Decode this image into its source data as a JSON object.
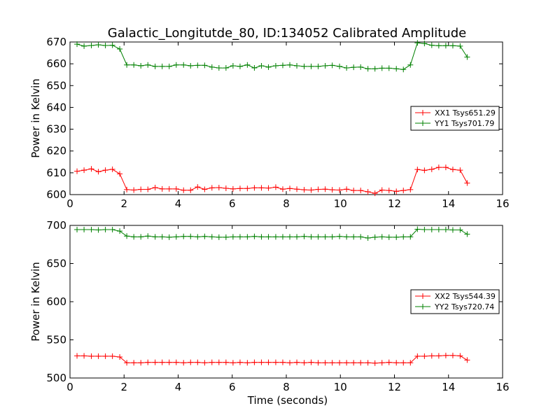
{
  "figure": {
    "title": "Galactic_Longitutde_80, ID:134052 Calibrated Amplitude"
  },
  "chart_data": [
    {
      "type": "line",
      "title": "Galactic_Longitutde_80, ID:134052 Calibrated Amplitude",
      "xlabel": "",
      "ylabel": "Power in Kelvin",
      "xlim": [
        0,
        16
      ],
      "ylim": [
        600,
        670
      ],
      "xticks": [
        0,
        2,
        4,
        6,
        8,
        10,
        12,
        14,
        16
      ],
      "yticks": [
        600,
        610,
        620,
        630,
        640,
        650,
        660,
        670
      ],
      "x_tick_labels": [
        "0",
        "2",
        "4",
        "6",
        "8",
        "10",
        "12",
        "14",
        "16"
      ],
      "y_tick_labels": [
        "600",
        "610",
        "620",
        "630",
        "640",
        "650",
        "660",
        "670"
      ],
      "grid": false,
      "legend_position": "right",
      "x": [
        0.26,
        0.52,
        0.79,
        1.05,
        1.31,
        1.57,
        1.84,
        2.1,
        2.36,
        2.62,
        2.88,
        3.15,
        3.41,
        3.67,
        3.93,
        4.2,
        4.46,
        4.72,
        4.98,
        5.25,
        5.51,
        5.77,
        6.03,
        6.29,
        6.56,
        6.82,
        7.08,
        7.34,
        7.61,
        7.87,
        8.13,
        8.39,
        8.66,
        8.92,
        9.18,
        9.44,
        9.7,
        9.97,
        10.23,
        10.49,
        10.75,
        11.02,
        11.28,
        11.54,
        11.8,
        12.07,
        12.33,
        12.59,
        12.85,
        13.11,
        13.38,
        13.64,
        13.9,
        14.16,
        14.43,
        14.69
      ],
      "series": [
        {
          "name": "XX1 Tsys651.29",
          "color": "#ff0000",
          "values": [
            610.7,
            611.2,
            611.8,
            610.5,
            611.2,
            611.6,
            609.5,
            602.3,
            602.1,
            602.4,
            602.4,
            603.2,
            602.6,
            602.6,
            602.6,
            602.0,
            602.0,
            603.5,
            602.4,
            603.1,
            603.2,
            602.9,
            602.6,
            602.8,
            602.8,
            603.1,
            603.1,
            603.0,
            603.4,
            602.5,
            602.8,
            602.5,
            602.2,
            602.1,
            602.4,
            602.5,
            602.2,
            602.1,
            602.5,
            601.9,
            601.9,
            601.3,
            600.6,
            602.1,
            601.9,
            601.5,
            601.9,
            602.3,
            611.5,
            611.1,
            611.6,
            612.5,
            612.5,
            611.5,
            611.2,
            605.3
          ]
        },
        {
          "name": "YY1 Tsys701.79",
          "color": "#008000",
          "values": [
            669.0,
            668.1,
            668.4,
            668.7,
            668.4,
            668.5,
            666.8,
            659.5,
            659.5,
            659.1,
            659.5,
            658.8,
            658.8,
            658.8,
            659.5,
            659.5,
            659.1,
            659.3,
            659.3,
            658.5,
            658.1,
            658.1,
            659.1,
            658.8,
            659.5,
            658.1,
            659.1,
            658.5,
            659.1,
            659.3,
            659.5,
            659.1,
            658.8,
            658.8,
            658.8,
            659.1,
            659.3,
            658.8,
            658.1,
            658.4,
            658.5,
            657.7,
            657.7,
            658.0,
            658.0,
            657.7,
            657.4,
            659.5,
            669.6,
            669.3,
            668.5,
            668.3,
            668.3,
            668.3,
            668.1,
            663.1
          ]
        }
      ]
    },
    {
      "type": "line",
      "title": "",
      "xlabel": "Time (seconds)",
      "ylabel": "Power in Kelvin",
      "xlim": [
        0,
        16
      ],
      "ylim": [
        500,
        700
      ],
      "xticks": [
        0,
        2,
        4,
        6,
        8,
        10,
        12,
        14,
        16
      ],
      "yticks": [
        500,
        550,
        600,
        650,
        700
      ],
      "x_tick_labels": [
        "0",
        "2",
        "4",
        "6",
        "8",
        "10",
        "12",
        "14",
        "16"
      ],
      "y_tick_labels": [
        "500",
        "550",
        "600",
        "650",
        "700"
      ],
      "grid": false,
      "legend_position": "right",
      "x": [
        0.26,
        0.52,
        0.79,
        1.05,
        1.31,
        1.57,
        1.84,
        2.1,
        2.36,
        2.62,
        2.88,
        3.15,
        3.41,
        3.67,
        3.93,
        4.2,
        4.46,
        4.72,
        4.98,
        5.25,
        5.51,
        5.77,
        6.03,
        6.29,
        6.56,
        6.82,
        7.08,
        7.34,
        7.61,
        7.87,
        8.13,
        8.39,
        8.66,
        8.92,
        9.18,
        9.44,
        9.7,
        9.97,
        10.23,
        10.49,
        10.75,
        11.02,
        11.28,
        11.54,
        11.8,
        12.07,
        12.33,
        12.59,
        12.85,
        13.11,
        13.38,
        13.64,
        13.9,
        14.16,
        14.43,
        14.69
      ],
      "series": [
        {
          "name": "XX2 Tsys544.39",
          "color": "#ff0000",
          "values": [
            529.0,
            529.0,
            528.5,
            528.5,
            528.5,
            528.5,
            527.5,
            520.0,
            520.0,
            520.0,
            520.5,
            520.5,
            520.5,
            520.5,
            520.5,
            520.0,
            520.5,
            520.5,
            520.0,
            520.5,
            520.5,
            520.5,
            520.0,
            520.5,
            520.0,
            520.5,
            520.5,
            520.5,
            520.5,
            520.5,
            520.0,
            520.5,
            520.0,
            520.5,
            520.0,
            520.0,
            520.0,
            520.0,
            520.0,
            520.0,
            520.0,
            520.0,
            519.5,
            520.0,
            520.5,
            520.0,
            520.0,
            520.0,
            528.5,
            528.5,
            529.0,
            529.0,
            529.5,
            529.5,
            529.0,
            523.5
          ]
        },
        {
          "name": "YY2 Tsys720.74",
          "color": "#008000",
          "values": [
            694.5,
            694.5,
            694.5,
            694.0,
            694.5,
            694.5,
            692.5,
            686.0,
            685.0,
            685.0,
            686.0,
            685.0,
            685.0,
            684.5,
            685.0,
            685.5,
            685.5,
            685.0,
            685.5,
            685.0,
            684.5,
            684.5,
            685.0,
            685.0,
            685.0,
            685.5,
            685.0,
            685.0,
            685.0,
            685.0,
            685.0,
            685.0,
            685.5,
            685.0,
            685.0,
            685.0,
            685.0,
            685.5,
            685.0,
            685.0,
            685.0,
            683.5,
            684.5,
            685.0,
            684.5,
            684.5,
            685.0,
            685.0,
            695.0,
            694.5,
            694.5,
            694.5,
            694.5,
            694.0,
            694.0,
            688.5
          ]
        }
      ]
    }
  ]
}
